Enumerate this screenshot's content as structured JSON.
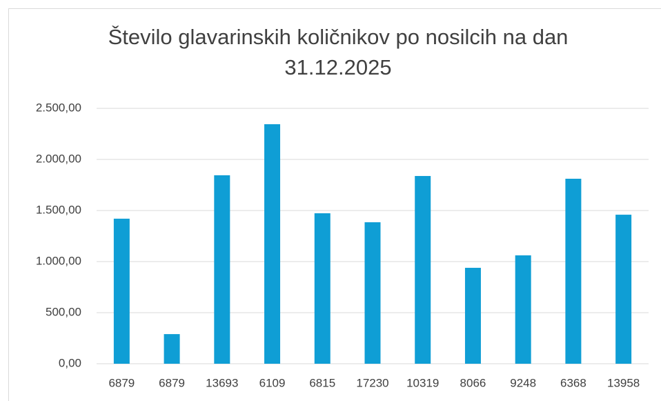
{
  "chart_data": {
    "type": "bar",
    "title": "Število glavarinskih količnikov po nosilcih na dan 31.12.2025",
    "categories": [
      "6879",
      "6879",
      "13693",
      "6109",
      "6815",
      "17230",
      "10319",
      "8066",
      "9248",
      "6368",
      "13958"
    ],
    "values": [
      1420,
      290,
      1845,
      2345,
      1473,
      1385,
      1838,
      939,
      1061,
      1811,
      1459
    ],
    "color": "#0f9ed5",
    "ylim": [
      0,
      2500
    ],
    "yticks": [
      {
        "value": 0,
        "label": "0,00"
      },
      {
        "value": 500,
        "label": "500,00"
      },
      {
        "value": 1000,
        "label": "1.000,00"
      },
      {
        "value": 1500,
        "label": "1.500,00"
      },
      {
        "value": 2000,
        "label": "2.000,00"
      },
      {
        "value": 2500,
        "label": "2.500,00"
      }
    ],
    "grid": true
  }
}
